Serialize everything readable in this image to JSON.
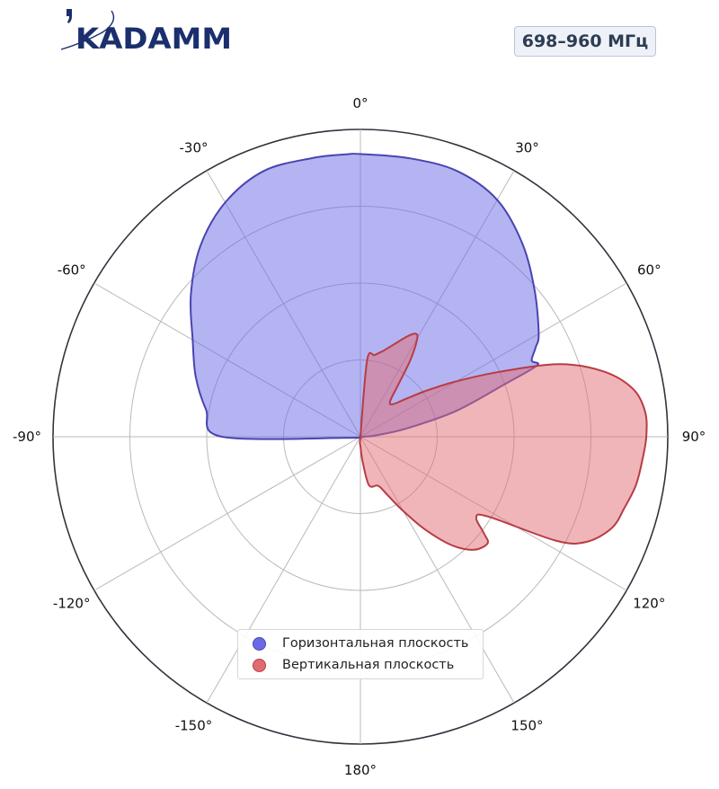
{
  "logo": {
    "text": "KADAMM",
    "color": "#1b2f6e"
  },
  "badge": {
    "text": "698–960 МГц"
  },
  "chart_data": {
    "type": "polar-area",
    "title": "",
    "theta_direction": "clockwise",
    "theta_zero": "top",
    "angle_labels": [
      "0°",
      "30°",
      "60°",
      "90°",
      "120°",
      "150°",
      "180°",
      "-150°",
      "-120°",
      "-90°",
      "-60°",
      "-30°"
    ],
    "r_range": [
      0,
      1
    ],
    "r_grid": [
      0.25,
      0.5,
      0.75,
      1.0
    ],
    "grid": true,
    "legend_position": "lower-center",
    "series": [
      {
        "name": "Горизонтальная плоскость",
        "color": "#6a6ae8",
        "edge_color": "#4a44b0",
        "theta": [
          -95,
          -90,
          -80,
          -70,
          -60,
          -50,
          -40,
          -30,
          -20,
          -10,
          -3,
          0,
          10,
          20,
          30,
          40,
          50,
          60,
          63,
          66,
          68,
          70,
          75,
          80,
          85,
          88,
          90
        ],
        "r": [
          0.04,
          0.45,
          0.51,
          0.57,
          0.63,
          0.72,
          0.81,
          0.88,
          0.92,
          0.92,
          0.92,
          0.92,
          0.92,
          0.92,
          0.89,
          0.82,
          0.74,
          0.67,
          0.64,
          0.61,
          0.62,
          0.5,
          0.32,
          0.15,
          0.05,
          0.02,
          0.0
        ]
      },
      {
        "name": "Вертикальная плоскость",
        "color": "#e26b72",
        "edge_color": "#b83c44",
        "theta": [
          0,
          5,
          10,
          15,
          20,
          25,
          28,
          30,
          33,
          36,
          40,
          45,
          50,
          55,
          60,
          65,
          70,
          75,
          80,
          85,
          90,
          95,
          100,
          105,
          110,
          115,
          118,
          122,
          125,
          128,
          130,
          135,
          140,
          145,
          150,
          155,
          160,
          170,
          175,
          180,
          185,
          190
        ],
        "r": [
          0.0,
          0.25,
          0.27,
          0.29,
          0.32,
          0.36,
          0.38,
          0.37,
          0.3,
          0.21,
          0.15,
          0.15,
          0.19,
          0.26,
          0.36,
          0.5,
          0.69,
          0.82,
          0.9,
          0.93,
          0.93,
          0.92,
          0.91,
          0.89,
          0.87,
          0.81,
          0.72,
          0.49,
          0.46,
          0.51,
          0.54,
          0.52,
          0.46,
          0.37,
          0.28,
          0.21,
          0.17,
          0.16,
          0.08,
          0.03,
          0.02,
          0.0
        ]
      }
    ]
  }
}
